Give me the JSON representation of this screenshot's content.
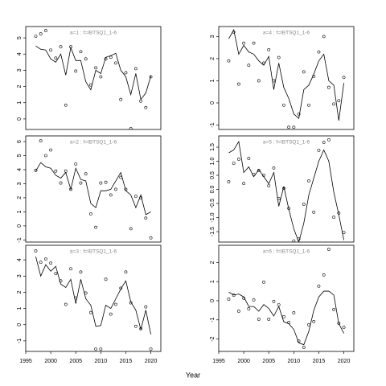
{
  "x_label": "Year",
  "chart_data": [
    {
      "type": "line",
      "title": "a=1  :  f=IBTSQ1_1-6",
      "x": [
        1997,
        1998,
        1999,
        2000,
        2001,
        2002,
        2003,
        2004,
        2005,
        2006,
        2007,
        2008,
        2009,
        2010,
        2011,
        2012,
        2013,
        2014,
        2015,
        2016,
        2017,
        2018,
        2019,
        2020
      ],
      "series": [
        {
          "style": "points",
          "color": "#000000",
          "values": [
            5.1,
            5.25,
            5.45,
            4.25,
            3.75,
            4.45,
            0.85,
            4.45,
            2.95,
            4.15,
            3.7,
            2.1,
            3.15,
            2.6,
            3.7,
            3.8,
            3.45,
            1.2,
            2.85,
            -0.6,
            3.1,
            1.1,
            0.7,
            2.6
          ]
        },
        {
          "style": "line",
          "color": "#000000",
          "values": [
            4.5,
            4.3,
            4.25,
            3.7,
            3.5,
            4.0,
            2.7,
            4.4,
            3.6,
            3.6,
            2.3,
            1.8,
            3.0,
            2.8,
            3.8,
            3.9,
            4.05,
            3.0,
            2.6,
            1.5,
            2.8,
            1.2,
            1.6,
            2.65
          ]
        }
      ],
      "xlim": [
        1995,
        2022
      ],
      "ylim": [
        -0.65,
        5.7
      ],
      "yticks": [
        0,
        1,
        2,
        3,
        4,
        5
      ]
    },
    {
      "type": "line",
      "title": "a=2  :  f=IBTSQ1_1-6",
      "x": [
        1997,
        1998,
        1999,
        2000,
        2001,
        2002,
        2003,
        2004,
        2005,
        2006,
        2007,
        2008,
        2009,
        2010,
        2011,
        2012,
        2013,
        2014,
        2015,
        2016,
        2017,
        2018,
        2019,
        2020
      ],
      "series": [
        {
          "style": "points",
          "color": "#000000",
          "values": [
            3.95,
            6.05,
            5.0,
            5.4,
            3.9,
            3.05,
            3.9,
            2.6,
            4.4,
            3.05,
            3.7,
            0.85,
            -0.1,
            3.05,
            3.1,
            2.2,
            2.6,
            3.45,
            2.6,
            -0.2,
            2.1,
            2.0,
            0.55,
            -0.85
          ]
        },
        {
          "style": "line",
          "color": "#000000",
          "values": [
            3.9,
            4.5,
            4.2,
            4.1,
            3.6,
            3.4,
            3.8,
            2.6,
            4.1,
            3.3,
            3.2,
            1.6,
            1.3,
            2.5,
            2.5,
            2.6,
            3.2,
            3.8,
            2.5,
            2.2,
            1.3,
            2.2,
            0.8,
            1.0
          ]
        }
      ],
      "xlim": [
        1995,
        2022
      ],
      "ylim": [
        -1.15,
        6.4
      ],
      "yticks": [
        -1,
        0,
        1,
        2,
        3,
        4,
        5,
        6
      ]
    },
    {
      "type": "line",
      "title": "a=3  :  f=IBTSQ1_1-6",
      "x": [
        1997,
        1998,
        1999,
        2000,
        2001,
        2002,
        2003,
        2004,
        2005,
        2006,
        2007,
        2008,
        2009,
        2010,
        2011,
        2012,
        2013,
        2014,
        2015,
        2016,
        2017,
        2018,
        2019,
        2020
      ],
      "series": [
        {
          "style": "points",
          "color": "#000000",
          "values": [
            4.55,
            3.85,
            4.05,
            3.8,
            3.15,
            2.7,
            1.25,
            3.45,
            1.65,
            3.25,
            1.95,
            0.75,
            -1.5,
            -1.5,
            2.8,
            0.65,
            1.25,
            2.25,
            3.25,
            1.35,
            -0.1,
            -0.25,
            1.1,
            -1.5
          ]
        },
        {
          "style": "line",
          "color": "#000000",
          "values": [
            4.2,
            3.0,
            3.7,
            3.3,
            3.6,
            2.5,
            2.3,
            2.8,
            1.3,
            2.8,
            1.6,
            1.2,
            -0.1,
            -0.05,
            1.2,
            1.0,
            1.6,
            2.2,
            2.7,
            1.4,
            0.9,
            -0.3,
            0.9,
            -0.6
          ]
        }
      ],
      "xlim": [
        1995,
        2022
      ],
      "ylim": [
        -1.65,
        4.9
      ],
      "yticks": [
        -1,
        0,
        1,
        2,
        3,
        4
      ],
      "xticks": [
        1995,
        2000,
        2005,
        2010,
        2015,
        2020
      ]
    },
    {
      "type": "line",
      "title": "a=4  :  f=IBTSQ1_1-6",
      "x": [
        1997,
        1998,
        1999,
        2000,
        2001,
        2002,
        2003,
        2004,
        2005,
        2006,
        2007,
        2008,
        2009,
        2010,
        2011,
        2012,
        2013,
        2014,
        2015,
        2016,
        2017,
        2018,
        2019,
        2020
      ],
      "series": [
        {
          "style": "points",
          "color": "#000000",
          "values": [
            1.9,
            3.2,
            0.85,
            2.7,
            1.7,
            2.7,
            1.0,
            1.8,
            2.4,
            1.0,
            2.05,
            -0.1,
            -1.1,
            -1.1,
            -0.5,
            1.4,
            -0.1,
            1.2,
            2.3,
            3.0,
            0.7,
            -0.05,
            0.1,
            1.15
          ]
        },
        {
          "style": "line",
          "color": "#000000",
          "values": [
            2.9,
            3.3,
            2.2,
            2.6,
            2.3,
            2.2,
            1.9,
            1.7,
            2.1,
            0.6,
            1.8,
            0.7,
            0.2,
            -0.5,
            -0.7,
            0.6,
            0.8,
            1.3,
            1.9,
            2.2,
            1.0,
            0.8,
            -0.8,
            0.9
          ]
        }
      ],
      "xlim": [
        1995,
        2022
      ],
      "ylim": [
        -1.2,
        3.45
      ],
      "yticks": [
        -1,
        0,
        1,
        2,
        3
      ]
    },
    {
      "type": "line",
      "title": "a=5  :  f=IBTSQ1_1-6",
      "x": [
        1997,
        1998,
        1999,
        2000,
        2001,
        2002,
        2003,
        2004,
        2005,
        2006,
        2007,
        2008,
        2009,
        2010,
        2011,
        2012,
        2013,
        2014,
        2015,
        2016,
        2017,
        2018,
        2019,
        2020
      ],
      "series": [
        {
          "style": "points",
          "color": "#000000",
          "values": [
            0.27,
            0.93,
            1.07,
            0.21,
            1.1,
            0.53,
            0.67,
            0.5,
            0.13,
            0.76,
            -0.33,
            0.04,
            -0.67,
            -1.83,
            -1.76,
            -0.53,
            0.3,
            -0.81,
            1.39,
            1.67,
            1.76,
            -0.99,
            -0.84,
            -1.53
          ]
        },
        {
          "style": "line",
          "color": "#000000",
          "values": [
            1.3,
            1.4,
            1.7,
            0.6,
            0.8,
            0.45,
            0.7,
            0.45,
            0.2,
            0.6,
            -0.6,
            0.1,
            -0.7,
            -1.4,
            -1.87,
            -1.2,
            -0.2,
            0.4,
            1.0,
            1.4,
            1.0,
            -0.1,
            -0.9,
            -1.8
          ]
        }
      ],
      "xlim": [
        1995,
        2022
      ],
      "ylim": [
        -1.87,
        1.9
      ],
      "yticks": [
        {
          "value": -1.5,
          "label": "-1.5"
        },
        {
          "value": -1,
          "label": "-1.0"
        },
        {
          "value": -0.5,
          "label": "-0.5"
        },
        {
          "value": 0,
          "label": "0.0"
        },
        {
          "value": 0.5,
          "label": "0.5"
        },
        {
          "value": 1,
          "label": "1.0"
        },
        {
          "value": 1.5,
          "label": "1.5"
        }
      ]
    },
    {
      "type": "line",
      "title": "a=6  :  f=IBTSQ1_1-6",
      "x": [
        1997,
        1998,
        1999,
        2000,
        2001,
        2002,
        2003,
        2004,
        2005,
        2006,
        2007,
        2008,
        2009,
        2010,
        2011,
        2012,
        2013,
        2014,
        2015,
        2016,
        2017,
        2018,
        2019,
        2020
      ],
      "series": [
        {
          "style": "points",
          "color": "#000000",
          "values": [
            0.08,
            0.29,
            -0.55,
            0.13,
            -0.42,
            0.04,
            -0.97,
            0.97,
            -0.97,
            -0.04,
            -0.21,
            -0.84,
            -1.14,
            -0.63,
            -2.11,
            -2.44,
            -1.26,
            -1.09,
            0.76,
            1.35,
            2.69,
            -0.46,
            -1.18,
            -1.39
          ]
        },
        {
          "style": "line",
          "color": "#000000",
          "values": [
            0.45,
            0.3,
            0.35,
            0.2,
            -0.3,
            -0.3,
            -0.55,
            -0.2,
            -0.4,
            -0.8,
            -0.3,
            -1.1,
            -1.2,
            -1.5,
            -2.2,
            -2.3,
            -1.6,
            -0.5,
            0.2,
            0.5,
            0.5,
            0.3,
            -1.2,
            -1.7
          ]
        }
      ],
      "xlim": [
        1995,
        2022
      ],
      "ylim": [
        -2.65,
        2.9
      ],
      "yticks": [
        -2,
        -1,
        0,
        1,
        2
      ],
      "xticks": [
        1995,
        2000,
        2005,
        2010,
        2015,
        2020
      ]
    }
  ]
}
